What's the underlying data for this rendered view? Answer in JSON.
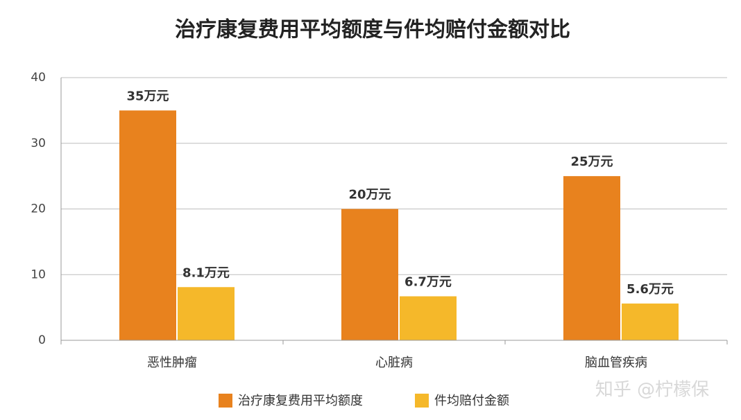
{
  "chart_data": {
    "type": "bar",
    "title": "治疗康复费用平均额度与件均赔付金额对比",
    "categories": [
      "恶性肿瘤",
      "心脏病",
      "脑血管疾病"
    ],
    "series": [
      {
        "name": "治疗康复费用平均额度",
        "color": "#e8821e",
        "values": [
          35,
          20,
          25
        ],
        "value_labels": [
          "35万元",
          "20万元",
          "25万元"
        ]
      },
      {
        "name": "件均赔付金额",
        "color": "#f5b82a",
        "values": [
          8.1,
          6.7,
          5.6
        ],
        "value_labels": [
          "8.1万元",
          "6.7万元",
          "5.6万元"
        ]
      }
    ],
    "ylim": [
      0,
      40
    ],
    "yticks": [
      0,
      10,
      20,
      30,
      40
    ],
    "grid": true,
    "legend": "bottom",
    "watermark": "知乎 @柠檬保"
  }
}
